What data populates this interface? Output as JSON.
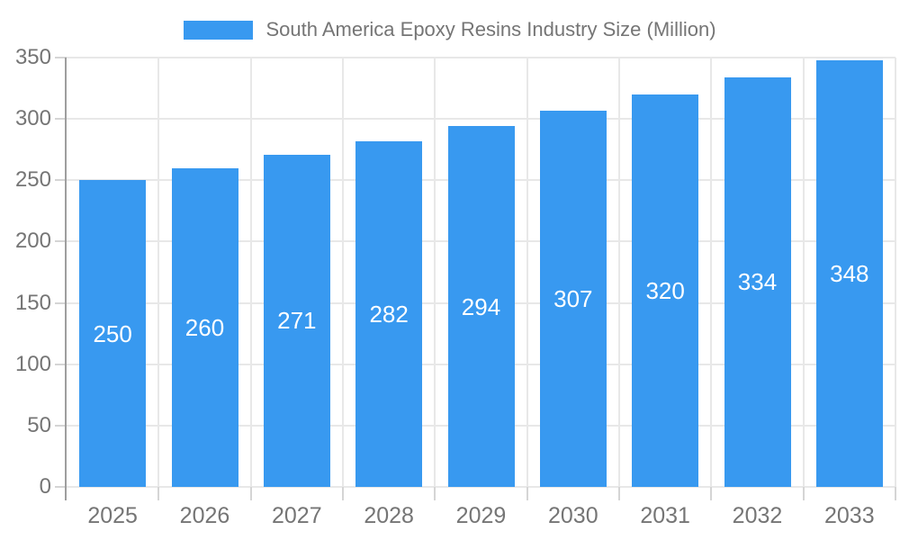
{
  "chart_data": {
    "type": "bar",
    "title": "South America Epoxy Resins Industry Size (Million)",
    "categories": [
      "2025",
      "2026",
      "2027",
      "2028",
      "2029",
      "2030",
      "2031",
      "2032",
      "2033"
    ],
    "values": [
      250,
      260,
      271,
      282,
      294,
      307,
      320,
      334,
      348
    ],
    "xlabel": "",
    "ylabel": "",
    "ylim": [
      0,
      350
    ],
    "yticks": [
      0,
      50,
      100,
      150,
      200,
      250,
      300,
      350
    ],
    "grid": true,
    "legend_position": "top-center",
    "bar_labels_visible": true,
    "bar_label_position": "center",
    "colors": {
      "bar": "#3899F0",
      "bar_label_text": "#FFFFFF",
      "axis_text": "#757575",
      "gridline": "#E8E8E8",
      "tick": "#D5D5D5",
      "axis_line": "#9E9E9E",
      "background": "#FFFFFF"
    }
  }
}
